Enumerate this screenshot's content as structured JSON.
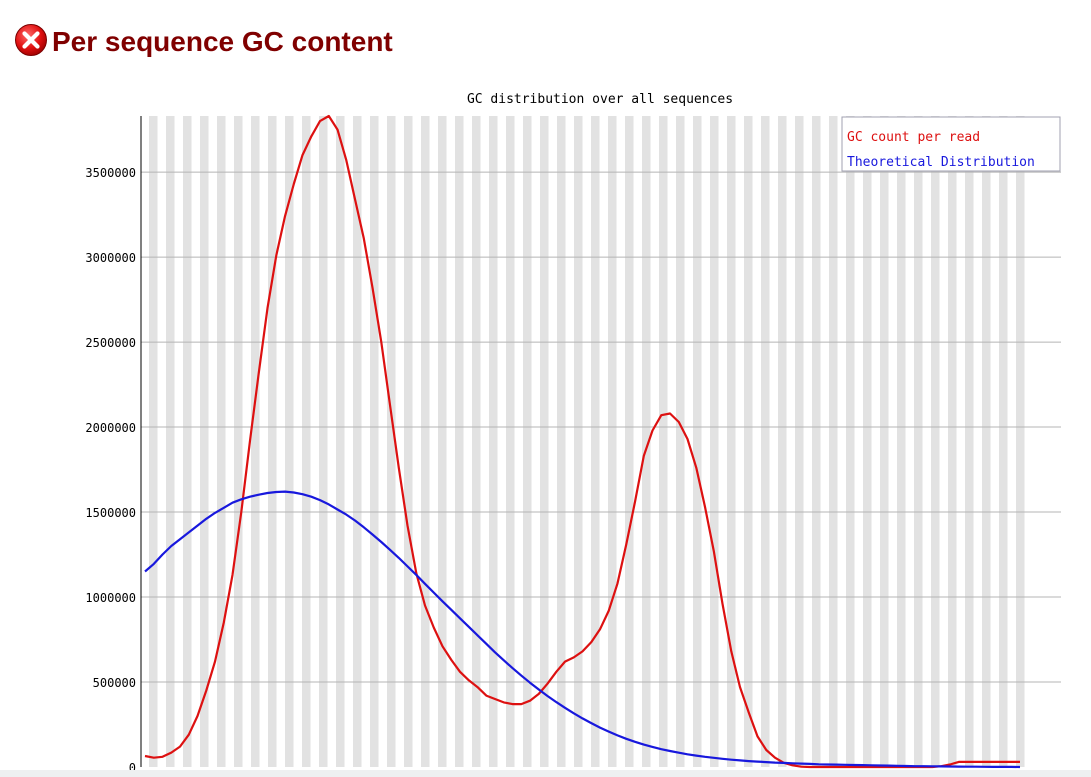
{
  "section": {
    "status_icon": "error-icon",
    "title": "Per sequence GC content"
  },
  "chart_data": {
    "type": "line",
    "title": "GC distribution over all sequences",
    "xlabel": "",
    "ylabel": "",
    "ylim": [
      0,
      3830000
    ],
    "yticks": [
      "0",
      "500000",
      "1000000",
      "1500000",
      "2000000",
      "2500000",
      "3000000",
      "3500000"
    ],
    "grid": true,
    "legend_position": "top-right",
    "x": [
      0,
      1,
      2,
      3,
      4,
      5,
      6,
      7,
      8,
      9,
      10,
      11,
      12,
      13,
      14,
      15,
      16,
      17,
      18,
      19,
      20,
      21,
      22,
      23,
      24,
      25,
      26,
      27,
      28,
      29,
      30,
      31,
      32,
      33,
      34,
      35,
      36,
      37,
      38,
      39,
      40,
      41,
      42,
      43,
      44,
      45,
      46,
      47,
      48,
      49,
      50,
      51,
      52,
      53,
      54,
      55,
      56,
      57,
      58,
      59,
      60,
      61,
      62,
      63,
      64,
      65,
      66,
      67,
      68,
      69,
      70,
      71,
      72,
      73,
      74,
      75,
      76,
      77,
      78,
      79,
      80,
      81,
      82,
      83,
      84,
      85,
      86,
      87,
      88,
      89,
      90,
      91,
      92,
      93,
      94,
      95,
      96,
      97,
      98,
      99,
      100
    ],
    "series": [
      {
        "name": "GC count per read",
        "color": "#dd1111",
        "values": [
          65000,
          55000,
          60000,
          85000,
          120000,
          190000,
          300000,
          450000,
          620000,
          850000,
          1130000,
          1500000,
          1920000,
          2320000,
          2700000,
          3010000,
          3240000,
          3430000,
          3600000,
          3710000,
          3800000,
          3830000,
          3750000,
          3570000,
          3340000,
          3110000,
          2820000,
          2500000,
          2130000,
          1760000,
          1420000,
          1140000,
          950000,
          820000,
          710000,
          630000,
          560000,
          510000,
          470000,
          420000,
          400000,
          380000,
          370000,
          370000,
          390000,
          430000,
          490000,
          560000,
          620000,
          645000,
          680000,
          735000,
          810000,
          920000,
          1080000,
          1310000,
          1560000,
          1830000,
          1980000,
          2070000,
          2080000,
          2030000,
          1930000,
          1760000,
          1530000,
          1270000,
          960000,
          680000,
          470000,
          320000,
          180000,
          100000,
          55000,
          25000,
          10000,
          2000,
          0,
          0,
          0,
          0,
          0,
          0,
          0,
          0,
          0,
          0,
          0,
          0,
          0,
          0,
          0,
          5000,
          15000,
          30000,
          30000,
          30000,
          30000,
          30000,
          30000,
          30000,
          30000
        ],
        "visible_points": 101
      },
      {
        "name": "Theoretical Distribution",
        "color": "#1818dd",
        "values": [
          1150000,
          1195000,
          1250000,
          1300000,
          1340000,
          1380000,
          1420000,
          1460000,
          1495000,
          1525000,
          1555000,
          1575000,
          1590000,
          1602000,
          1612000,
          1618000,
          1620000,
          1615000,
          1605000,
          1590000,
          1570000,
          1545000,
          1515000,
          1485000,
          1450000,
          1410000,
          1368000,
          1324000,
          1278000,
          1230000,
          1180000,
          1130000,
          1078000,
          1026000,
          975000,
          925000,
          875000,
          825000,
          775000,
          725000,
          675000,
          628000,
          582000,
          538000,
          496000,
          456000,
          418000,
          382000,
          348000,
          316000,
          286000,
          258000,
          232000,
          208000,
          186000,
          166000,
          148000,
          132000,
          118000,
          105000,
          94000,
          84000,
          75000,
          67000,
          60000,
          54000,
          48000,
          43000,
          39000,
          35000,
          32000,
          29000,
          26000,
          24000,
          22000,
          20000,
          18000,
          16000,
          15000,
          14000,
          13000,
          12000,
          11000,
          10000,
          9000,
          8000,
          7000,
          6000,
          5000,
          4500,
          4000,
          3500,
          3000,
          2500,
          2000,
          1500,
          1000,
          800,
          600,
          400,
          200
        ],
        "visible_points": 101
      }
    ]
  }
}
